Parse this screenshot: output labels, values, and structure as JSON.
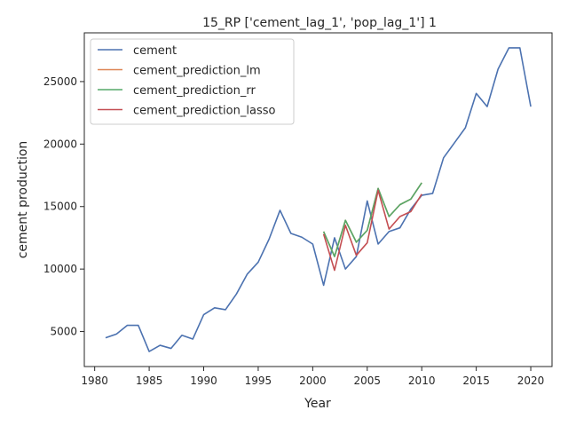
{
  "chart_data": {
    "type": "line",
    "title": "15_RP ['cement_lag_1', 'pop_lag_1'] 1",
    "xlabel": "Year",
    "ylabel": "cement production",
    "xlim": [
      1979.05,
      2021.95
    ],
    "ylim": [
      2200,
      28900
    ],
    "xticks": [
      1980,
      1985,
      1990,
      1995,
      2000,
      2005,
      2010,
      2015,
      2020
    ],
    "yticks": [
      5000,
      10000,
      15000,
      20000,
      25000
    ],
    "grid": false,
    "legend_position": "top-left",
    "series": [
      {
        "name": "cement",
        "color": "#4c72b0",
        "x": [
          1981,
          1982,
          1983,
          1984,
          1985,
          1986,
          1987,
          1988,
          1989,
          1990,
          1991,
          1992,
          1993,
          1994,
          1995,
          1996,
          1997,
          1998,
          1999,
          2000,
          2001,
          2002,
          2003,
          2004,
          2005,
          2006,
          2007,
          2008,
          2009,
          2010,
          2011,
          2012,
          2013,
          2014,
          2015,
          2016,
          2017,
          2018,
          2019,
          2020
        ],
        "y": [
          4500,
          4800,
          5500,
          5500,
          3400,
          3900,
          3650,
          4700,
          4400,
          6350,
          6900,
          6750,
          8000,
          9600,
          10550,
          12400,
          14700,
          12850,
          12550,
          12000,
          8700,
          12500,
          10000,
          11000,
          15450,
          12000,
          13000,
          13300,
          14800,
          15900,
          16050,
          18900,
          20100,
          21300,
          24050,
          23000,
          26000,
          27700,
          27700,
          23000
        ]
      },
      {
        "name": "cement_prediction_lm",
        "color": "#dd8452",
        "x": [
          2001,
          2002,
          2003,
          2004,
          2005,
          2006,
          2007,
          2008,
          2009,
          2010
        ],
        "y": [
          13000,
          11000,
          13900,
          12150,
          13100,
          16450,
          14200,
          15150,
          15600,
          16900
        ]
      },
      {
        "name": "cement_prediction_rr",
        "color": "#55a868",
        "x": [
          2001,
          2002,
          2003,
          2004,
          2005,
          2006,
          2007,
          2008,
          2009,
          2010
        ],
        "y": [
          13000,
          11000,
          13900,
          12150,
          13100,
          16450,
          14200,
          15150,
          15600,
          16900
        ]
      },
      {
        "name": "cement_prediction_lasso",
        "color": "#c44e52",
        "x": [
          2001,
          2002,
          2003,
          2004,
          2005,
          2006,
          2007,
          2008,
          2009,
          2010
        ],
        "y": [
          12800,
          9900,
          13500,
          11100,
          12100,
          16300,
          13200,
          14200,
          14600,
          16000
        ]
      }
    ]
  }
}
